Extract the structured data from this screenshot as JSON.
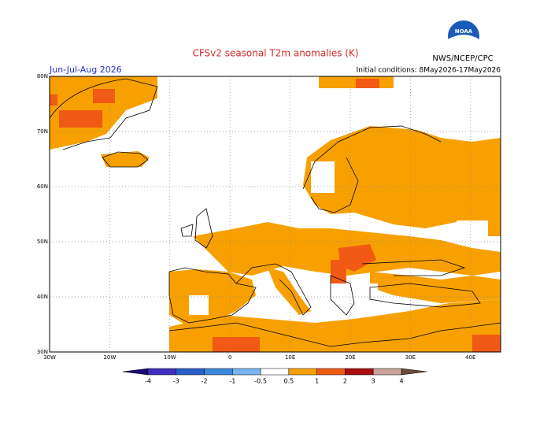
{
  "chart_data": {
    "type": "map",
    "title": "CFSv2 seasonal T2m anomalies (K)",
    "subtitle_left": "Jun-Jul-Aug 2026",
    "subtitle_right": "Initial conditions: 8May2026-17May2026",
    "source": "NWS/NCEP/CPC",
    "logo": "NOAA",
    "xlim": [
      -30,
      45
    ],
    "ylim": [
      30,
      80
    ],
    "xticks": [
      {
        "value": -30,
        "label": "30W"
      },
      {
        "value": -20,
        "label": "20W"
      },
      {
        "value": -10,
        "label": "10W"
      },
      0,
      {
        "value": 10,
        "label": "10E"
      },
      {
        "value": 20,
        "label": "20E"
      },
      {
        "value": 30,
        "label": "30E"
      },
      {
        "value": 40,
        "label": "40E"
      }
    ],
    "yticks": [
      {
        "value": 30,
        "label": "30N"
      },
      {
        "value": 40,
        "label": "40N"
      },
      {
        "value": 50,
        "label": "50N"
      },
      {
        "value": 60,
        "label": "60N"
      },
      {
        "value": 70,
        "label": "70N"
      },
      {
        "value": 80,
        "label": "80N"
      }
    ],
    "grid": true,
    "colorbar": {
      "ticks": [
        -4,
        -3,
        -2,
        -1,
        -0.5,
        0.5,
        1,
        2,
        3,
        4
      ],
      "colors": [
        "#3f2fbf",
        "#2a5fc8",
        "#3c86dc",
        "#7ab4ee",
        "#ffffff",
        "#f7a000",
        "#f05a14",
        "#a80e0e",
        "#c9a39a"
      ],
      "under_color": "#1a0a78",
      "over_color": "#6e4a3c"
    }
  }
}
